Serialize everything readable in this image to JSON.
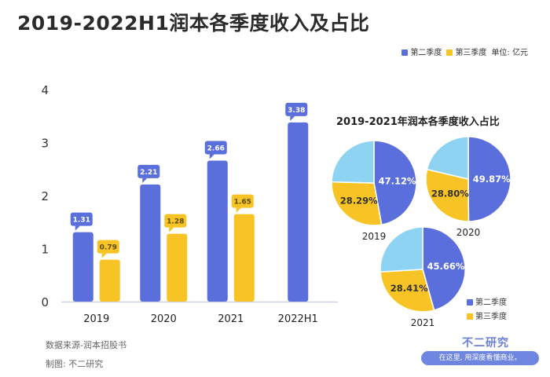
{
  "title": "2019-2022H1润本各季度收入及占比",
  "legend_top": {
    "q2": "第二季度",
    "q3": "第三季度",
    "unit": "单位: 亿元"
  },
  "colors": {
    "q2": "#5b6fdc",
    "q3": "#f7c325",
    "other": "#8fd3f2"
  },
  "footer": {
    "source": "数据来源-润本招股书",
    "made_by": "制图: 不二研究"
  },
  "brand": {
    "name": "不二研究",
    "slogan": "在这里, 用深度看懂商业。"
  },
  "chart_data": [
    {
      "type": "bar",
      "categories": [
        "2019",
        "2020",
        "2021",
        "2022H1"
      ],
      "series": [
        {
          "name": "第二季度",
          "values": [
            1.31,
            2.21,
            2.66,
            3.38
          ]
        },
        {
          "name": "第三季度",
          "values": [
            0.79,
            1.28,
            1.65,
            null
          ]
        }
      ],
      "ylim": [
        0,
        4
      ],
      "yticks": [
        0,
        1,
        2,
        3,
        4
      ],
      "data_labels": true
    },
    {
      "type": "pie",
      "title": "2019-2021年润本各季度收入占比",
      "pies": [
        {
          "label": "2019",
          "slices": [
            {
              "name": "第二季度",
              "value": 47.12
            },
            {
              "name": "第三季度",
              "value": 28.29
            },
            {
              "name": "",
              "value": 24.59
            }
          ]
        },
        {
          "label": "2020",
          "slices": [
            {
              "name": "第二季度",
              "value": 49.87
            },
            {
              "name": "第三季度",
              "value": 28.8
            },
            {
              "name": "",
              "value": 21.33
            }
          ]
        },
        {
          "label": "2021",
          "slices": [
            {
              "name": "第二季度",
              "value": 45.66
            },
            {
              "name": "第三季度",
              "value": 28.41
            },
            {
              "name": "",
              "value": 25.93
            }
          ]
        }
      ],
      "legend": [
        "第二季度",
        "第三季度"
      ],
      "legend_position": "bottom-right"
    }
  ]
}
